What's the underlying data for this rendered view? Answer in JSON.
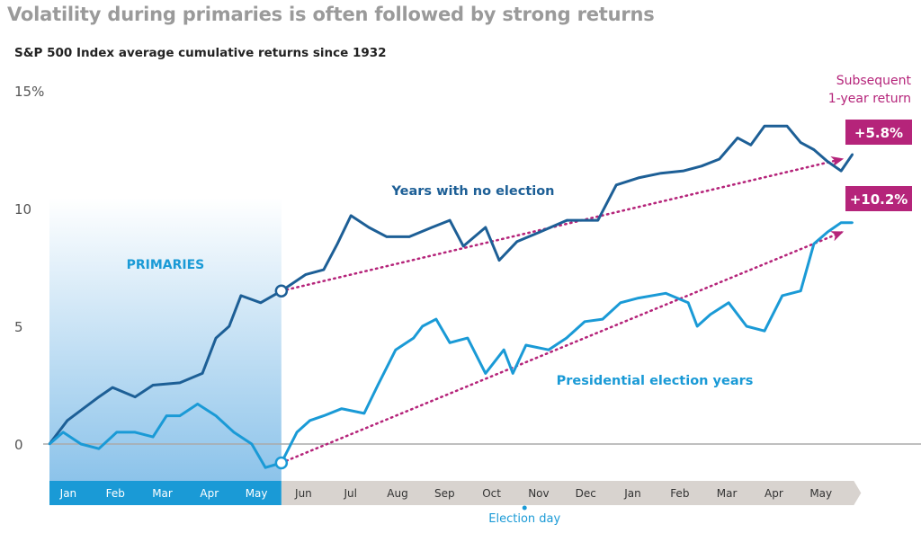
{
  "chart_data": {
    "type": "line",
    "title": "Volatility during primaries is often followed by strong returns",
    "subtitle": "S&P 500 Index average cumulative returns since 1932",
    "ylim": [
      -2,
      15
    ],
    "yticks": [
      {
        "v": 15,
        "label": "15%"
      },
      {
        "v": 10,
        "label": "10"
      },
      {
        "v": 5,
        "label": "5"
      },
      {
        "v": 0,
        "label": "0"
      }
    ],
    "xticks": [
      "Jan",
      "Feb",
      "Mar",
      "Apr",
      "May",
      "Jun",
      "Jul",
      "Aug",
      "Sep",
      "Oct",
      "Nov",
      "Dec",
      "Jan",
      "Feb",
      "Mar",
      "Apr",
      "May"
    ],
    "xlim_months": [
      0,
      17.1
    ],
    "grid": false,
    "shaded_region": {
      "label": "PRIMARIES",
      "from_month": 0,
      "to_month": 4.93
    },
    "event_marker": {
      "label": "Election day",
      "month": 10.1
    },
    "series": [
      {
        "name": "Years with no election",
        "color": "#1d5f96",
        "x": [
          0,
          0.38,
          1.05,
          1.34,
          1.82,
          2.2,
          2.77,
          3.25,
          3.54,
          3.82,
          4.07,
          4.49,
          4.93,
          5.45,
          5.83,
          6.12,
          6.41,
          6.79,
          7.17,
          7.65,
          8.13,
          8.51,
          8.8,
          9.27,
          9.56,
          9.94,
          10.42,
          11.0,
          11.66,
          12.05,
          12.52,
          13.0,
          13.48,
          13.86,
          14.24,
          14.63,
          14.91,
          15.2,
          15.68,
          15.97,
          16.25,
          16.54,
          16.83,
          17.07
        ],
        "y": [
          0,
          1.0,
          2.0,
          2.4,
          2.0,
          2.5,
          2.6,
          3.0,
          4.5,
          5.0,
          6.3,
          6.0,
          6.5,
          7.2,
          7.4,
          8.5,
          9.7,
          9.2,
          8.8,
          8.8,
          9.2,
          9.5,
          8.4,
          9.2,
          7.8,
          8.6,
          9.0,
          9.5,
          9.5,
          11.0,
          11.3,
          11.5,
          11.6,
          11.8,
          12.1,
          13.0,
          12.7,
          13.5,
          13.5,
          12.8,
          12.5,
          12.0,
          11.6,
          12.3
        ]
      },
      {
        "name": "Presidential election years",
        "color": "#1a9ad6",
        "x": [
          0,
          0.29,
          0.67,
          1.05,
          1.43,
          1.82,
          2.2,
          2.49,
          2.77,
          3.15,
          3.54,
          3.92,
          4.3,
          4.59,
          4.93,
          5.26,
          5.54,
          5.83,
          6.21,
          6.69,
          6.98,
          7.36,
          7.74,
          7.93,
          8.22,
          8.51,
          8.89,
          9.27,
          9.66,
          9.85,
          10.13,
          10.61,
          10.99,
          11.38,
          11.76,
          12.14,
          12.52,
          13.1,
          13.58,
          13.77,
          14.05,
          14.44,
          14.82,
          15.2,
          15.58,
          15.97,
          16.25,
          16.54,
          16.83,
          17.07
        ],
        "y": [
          0,
          0.5,
          0,
          -0.2,
          0.5,
          0.5,
          0.3,
          1.2,
          1.2,
          1.7,
          1.2,
          0.5,
          0,
          -1.0,
          -0.8,
          0.5,
          1.0,
          1.2,
          1.5,
          1.3,
          2.5,
          4.0,
          4.5,
          5.0,
          5.3,
          4.3,
          4.5,
          3.0,
          4.0,
          3.0,
          4.2,
          4.0,
          4.5,
          5.2,
          5.3,
          6.0,
          6.2,
          6.4,
          6.0,
          5.0,
          5.5,
          6.0,
          5.0,
          4.8,
          6.3,
          6.5,
          8.5,
          9.0,
          9.4,
          9.4
        ]
      }
    ],
    "annotations": {
      "header": "Subsequent\n1-year return",
      "header_line1": "Subsequent",
      "header_line2": "1-year return",
      "returns": [
        {
          "series": "Years with no election",
          "label": "+5.8%",
          "from": [
            4.93,
            6.5
          ],
          "to": [
            16.85,
            12.1
          ]
        },
        {
          "series": "Presidential election years",
          "label": "+10.2%",
          "from": [
            4.93,
            -0.8
          ],
          "to": [
            16.85,
            9.0
          ]
        }
      ]
    },
    "colors": {
      "accent": "#b5247a",
      "primaries_band": "#1a9ad6",
      "axis_band": "#d8d3cf",
      "title": "#9a9a9a"
    }
  }
}
